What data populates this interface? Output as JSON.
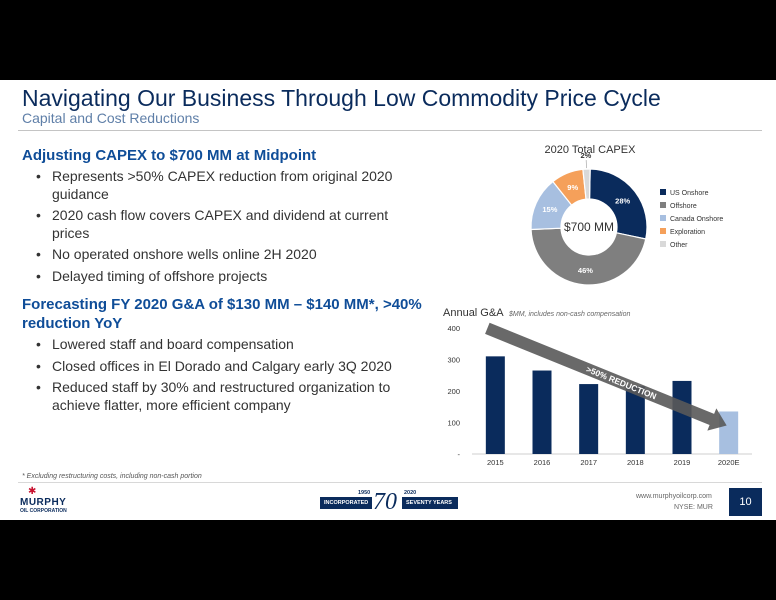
{
  "header": {
    "title": "Navigating Our Business Through Low Commodity Price Cycle",
    "subtitle": "Capital and Cost Reductions"
  },
  "sections": [
    {
      "heading": "Adjusting CAPEX to $700 MM at Midpoint",
      "bullets": [
        "Represents >50% CAPEX reduction from original 2020 guidance",
        "2020 cash flow covers CAPEX and dividend at current prices",
        "No operated onshore wells online 2H 2020",
        "Delayed timing of offshore projects"
      ]
    },
    {
      "heading": "Forecasting FY 2020 G&A of $130 MM – $140 MM*, >40% reduction YoY",
      "bullets": [
        "Lowered staff and board compensation",
        "Closed offices in El Dorado and Calgary early 3Q 2020",
        "Reduced staff by 30% and restructured organization to achieve flatter, more efficient company"
      ]
    }
  ],
  "chart_data": [
    {
      "type": "pie",
      "title": "2020 Total CAPEX",
      "center_label": "$700 MM",
      "slices": [
        {
          "name": "US Onshore",
          "value": 28,
          "label": "28%",
          "color": "#0a2b5c"
        },
        {
          "name": "Offshore",
          "value": 46,
          "label": "46%",
          "color": "#7f7f7f"
        },
        {
          "name": "Canada Onshore",
          "value": 15,
          "label": "15%",
          "color": "#a7bfe0"
        },
        {
          "name": "Exploration",
          "value": 9,
          "label": "9%",
          "color": "#f5a05a"
        },
        {
          "name": "Other",
          "value": 2,
          "label": "2%",
          "color": "#d9d9d9"
        }
      ]
    },
    {
      "type": "bar",
      "title": "Annual G&A",
      "subtitle": "$MM, includes non-cash compensation",
      "categories": [
        "2015",
        "2016",
        "2017",
        "2018",
        "2019",
        "2020E"
      ],
      "values": [
        310,
        265,
        222,
        215,
        232,
        135
      ],
      "colors": [
        "#0a2b5c",
        "#0a2b5c",
        "#0a2b5c",
        "#0a2b5c",
        "#0a2b5c",
        "#a7bfe0"
      ],
      "yticks": [
        "-",
        "100",
        "200",
        "300",
        "400"
      ],
      "ylim": [
        0,
        400
      ],
      "annotation": ">50% REDUCTION"
    }
  ],
  "footer": {
    "note": "* Excluding restructuring costs, including non-cash portion",
    "logo_name": "MURPHY",
    "logo_sub": "OIL CORPORATION",
    "anniv_year_start": "1950",
    "anniv_year_end": "2020",
    "anniv_left": "INCORPORATED",
    "anniv_right": "SEVENTY YEARS",
    "anniv_big": "70",
    "website": "www.murphyoilcorp.com",
    "ticker": "NYSE: MUR",
    "page_number": "10"
  }
}
